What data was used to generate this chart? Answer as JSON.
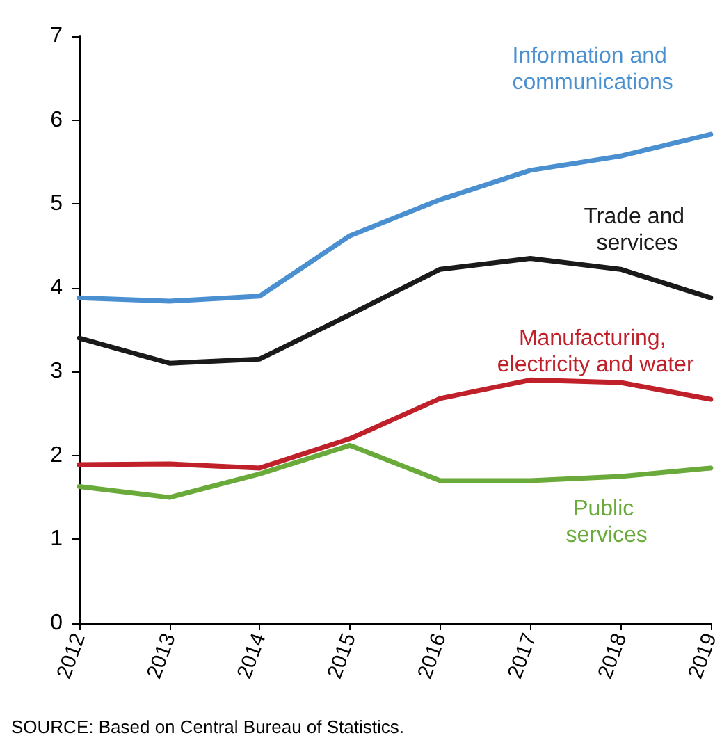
{
  "chart_data": {
    "type": "line",
    "categories": [
      "2012",
      "2013",
      "2014",
      "2015",
      "2016",
      "2017",
      "2018",
      "2019"
    ],
    "series": [
      {
        "name": "Information and communications",
        "color": "#4a90d0",
        "values": [
          3.88,
          3.84,
          3.9,
          4.62,
          5.05,
          5.4,
          5.57,
          5.83
        ]
      },
      {
        "name": "Trade and services",
        "color": "#1a1a1a",
        "values": [
          3.4,
          3.1,
          3.15,
          3.68,
          4.22,
          4.35,
          4.22,
          3.88
        ]
      },
      {
        "name": "Manufacturing, electricity and water",
        "color": "#c0202a",
        "values": [
          1.89,
          1.9,
          1.85,
          2.2,
          2.68,
          2.9,
          2.87,
          2.67
        ]
      },
      {
        "name": "Public services",
        "color": "#6aaa3a",
        "values": [
          1.63,
          1.5,
          1.78,
          2.12,
          1.7,
          1.7,
          1.75,
          1.85
        ]
      }
    ],
    "ylim": [
      0,
      7
    ],
    "yticks": [
      0,
      1,
      2,
      3,
      4,
      5,
      6,
      7
    ],
    "grid": false,
    "legend": false,
    "marker": "none",
    "line_style": "solid",
    "annotations": [
      "SOURCE: Based on Central Bureau of Statistics."
    ]
  }
}
